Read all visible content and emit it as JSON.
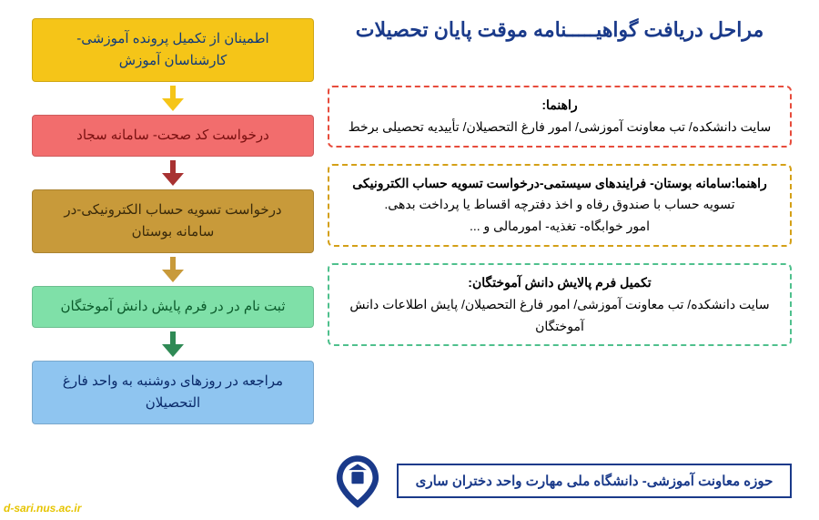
{
  "title": {
    "text": "مراحل دریافت گواهیـــــنامه موقت پایان تحصیلات",
    "color": "#1a3a8a",
    "fontsize": 22
  },
  "guides": [
    {
      "border_color": "#e74c3c",
      "title": "راهنما:",
      "body": "سایت دانشکده/ تب معاونت آموزشی/ امور فارغ التحصیلان/ تأییدیه تحصیلی برخط"
    },
    {
      "border_color": "#d4a017",
      "title": "راهنما:سامانه بوستان- فرایندهای سیستمی-درخواست تسویه حساب الکترونیکی",
      "body": "تسویه حساب با صندوق رفاه و اخذ دفترچه اقساط یا پرداخت بدهی.\nامور خوابگاه- تغذیه- امورمالی و ..."
    },
    {
      "border_color": "#4fc08d",
      "title": "تکمیل فرم پالایش دانش آموختگان:",
      "body": "سایت دانشکده/ تب معاونت آموزشی/ امور فارغ التحصیلان/ پایش اطلاعات دانش آموختگان"
    }
  ],
  "footer": {
    "text": "حوزه معاونت آموزشی- دانشگاه ملی مهارت واحد دختران ساری",
    "border_color": "#1a3a8a",
    "text_color": "#1a3a8a"
  },
  "steps": [
    {
      "text": "اطمینان از تکمیل پرونده آموزشی- کارشناسان آموزش",
      "bg": "#f5c518",
      "text_color": "#103a7a",
      "arrow": "#f5c518"
    },
    {
      "text": "درخواست کد صحت- سامانه سجاد",
      "bg": "#f26d6d",
      "text_color": "#7a1010",
      "arrow": "#a83232"
    },
    {
      "text": "درخواست تسویه حساب الکترونیکی-در سامانه بوستان",
      "bg": "#c89a3a",
      "text_color": "#3a2a0a",
      "arrow": "#c89a3a"
    },
    {
      "text": "ثبت نام در در فرم پایش دانش آموختگان",
      "bg": "#7fe0a8",
      "text_color": "#0a5a2a",
      "arrow": "#2f8a55"
    },
    {
      "text": "مراجعه در روزهای دوشنبه به واحد فارغ التحصیلان",
      "bg": "#8fc5f0",
      "text_color": "#0a2a6a",
      "arrow": null
    }
  ],
  "watermark": "d-sari.nus.ac.ir",
  "logo_color": "#1a3a8a"
}
